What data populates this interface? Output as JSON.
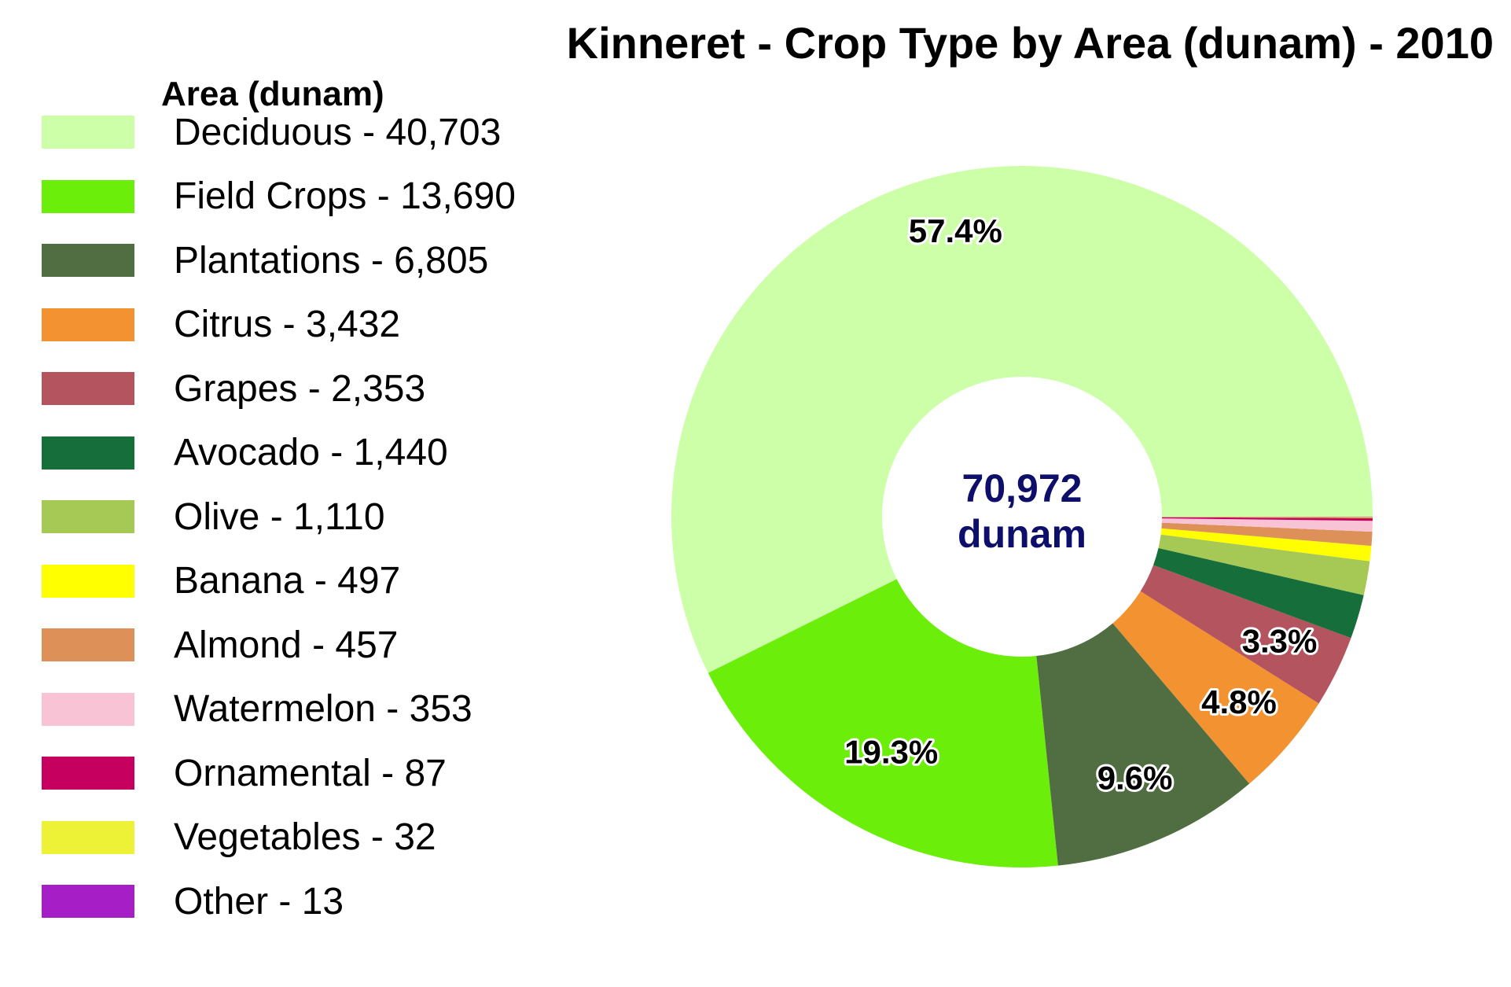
{
  "chart_data": {
    "type": "pie",
    "title": "Kinneret - Crop Type by Area (dunam) - 2010",
    "legend_title": "Area (dunam)",
    "legend_position": "left",
    "center_label": [
      "70,972",
      "dunam"
    ],
    "categories": [
      "Deciduous",
      "Field Crops",
      "Plantations",
      "Citrus",
      "Grapes",
      "Avocado",
      "Olive",
      "Banana",
      "Almond",
      "Watermelon",
      "Ornamental",
      "Vegetables",
      "Other"
    ],
    "values": [
      40703,
      13690,
      6805,
      3432,
      2353,
      1440,
      1110,
      497,
      457,
      353,
      87,
      32,
      13
    ],
    "legend_labels": [
      "Deciduous - 40,703",
      "Field Crops - 13,690",
      "Plantations - 6,805",
      "Citrus - 3,432",
      "Grapes - 2,353",
      "Avocado - 1,440",
      "Olive - 1,110",
      "Banana - 497",
      "Almond - 457",
      "Watermelon - 353",
      "Ornamental - 87",
      "Vegetables - 32",
      "Other - 13"
    ],
    "slice_labels": [
      "57.4%",
      "19.3%",
      "9.6%",
      "4.8%",
      "3.3%",
      "",
      "",
      "",
      "",
      "",
      "",
      "",
      ""
    ],
    "colors": [
      "#ccffa8",
      "#6aee0a",
      "#506e42",
      "#f39230",
      "#b3545e",
      "#166e3a",
      "#a6c855",
      "#ffff00",
      "#dd9058",
      "#f9c3d6",
      "#c5005e",
      "#eef236",
      "#a61ec5"
    ]
  }
}
